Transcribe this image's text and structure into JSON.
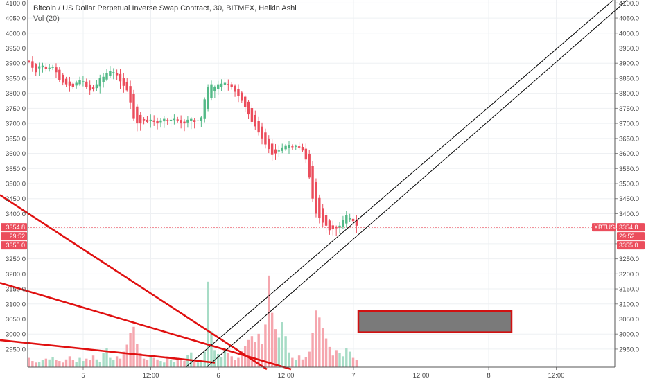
{
  "legend": {
    "title": "Bitcoin / US Dollar Perpetual Inverse Swap Contract, 30, BITMEX, Heikin Ashi",
    "volume": "Vol (20)"
  },
  "colors": {
    "up": "#53b987",
    "down": "#eb4d5c",
    "vol_up": "#a7dcc6",
    "vol_down": "#f5a6ae",
    "trendline_red": "#e01010",
    "channel": "#000000",
    "box_fill": "#7a7a7a",
    "box_border": "#d11111",
    "price_tag": "#eb4d5c"
  },
  "price_tag": {
    "symbol": "XBTUSD",
    "last": "3354.8",
    "countdown": "29:52",
    "level": "3355.0"
  },
  "chart_data": {
    "type": "candlestick",
    "title": "Bitcoin / US Dollar Perpetual Inverse Swap Contract, 30, BITMEX, Heikin Ashi",
    "x_ticks": [
      "5",
      "12:00",
      "6",
      "12:00",
      "7",
      "12:00",
      "8",
      "12:00"
    ],
    "y_ticks": [
      "2950.0",
      "3000.0",
      "3050.0",
      "3100.0",
      "3150.0",
      "3200.0",
      "3250.0",
      "3300.0",
      "3350.0",
      "3400.0",
      "3450.0",
      "3500.0",
      "3550.0",
      "3600.0",
      "3650.0",
      "3700.0",
      "3750.0",
      "3800.0",
      "3850.0",
      "3900.0",
      "3950.0",
      "4000.0",
      "4050.0",
      "4100.0"
    ],
    "ylim": [
      2890,
      4110
    ],
    "last_price": 3354.8,
    "closes": [
      3905,
      3885,
      3870,
      3890,
      3892,
      3880,
      3885,
      3888,
      3870,
      3845,
      3835,
      3830,
      3825,
      3820,
      3835,
      3845,
      3840,
      3820,
      3810,
      3815,
      3830,
      3850,
      3855,
      3868,
      3875,
      3870,
      3860,
      3840,
      3825,
      3810,
      3770,
      3715,
      3700,
      3700,
      3710,
      3705,
      3712,
      3705,
      3700,
      3710,
      3715,
      3710,
      3712,
      3715,
      3710,
      3700,
      3700,
      3712,
      3715,
      3705,
      3710,
      3720,
      3780,
      3820,
      3830,
      3820,
      3830,
      3832,
      3835,
      3830,
      3820,
      3805,
      3790,
      3775,
      3755,
      3730,
      3705,
      3690,
      3670,
      3650,
      3630,
      3615,
      3595,
      3600,
      3610,
      3620,
      3625,
      3628,
      3622,
      3625,
      3620,
      3610,
      3580,
      3520,
      3450,
      3400,
      3385,
      3370,
      3360,
      3345,
      3348,
      3352,
      3360,
      3378,
      3395,
      3385,
      3375,
      3360
    ],
    "volume": [
      12,
      8,
      6,
      7,
      9,
      11,
      10,
      13,
      9,
      8,
      6,
      10,
      14,
      9,
      7,
      12,
      8,
      11,
      9,
      15,
      10,
      7,
      18,
      25,
      12,
      9,
      14,
      11,
      20,
      29,
      44,
      52,
      30,
      18,
      11,
      9,
      15,
      12,
      10,
      8,
      6,
      14,
      9,
      7,
      12,
      10,
      8,
      16,
      19,
      7,
      6,
      9,
      20,
      110,
      46,
      22,
      17,
      13,
      25,
      18,
      14,
      9,
      12,
      21,
      27,
      35,
      40,
      33,
      43,
      30,
      55,
      118,
      70,
      49,
      38,
      58,
      40,
      19,
      12,
      9,
      15,
      10,
      13,
      20,
      44,
      73,
      64,
      50,
      37,
      26,
      15,
      22,
      18,
      14,
      25,
      20,
      12,
      9
    ],
    "trendlines": [
      {
        "points": [
          [
            0,
            3462
          ],
          [
            385,
            2883
          ]
        ]
      },
      {
        "points": [
          [
            0,
            3170
          ],
          [
            420,
            2883
          ]
        ]
      },
      {
        "points": [
          [
            0,
            2980
          ],
          [
            310,
            2905
          ]
        ]
      }
    ],
    "channel_lines": [
      {
        "points": [
          [
            268,
            2890
          ],
          [
            885,
            4110
          ]
        ]
      },
      {
        "points": [
          [
            298,
            2890
          ],
          [
            905,
            4110
          ]
        ]
      }
    ],
    "annotation_box": {
      "x1": 517,
      "x2": 738,
      "y1": 3077,
      "y2": 3006
    }
  }
}
